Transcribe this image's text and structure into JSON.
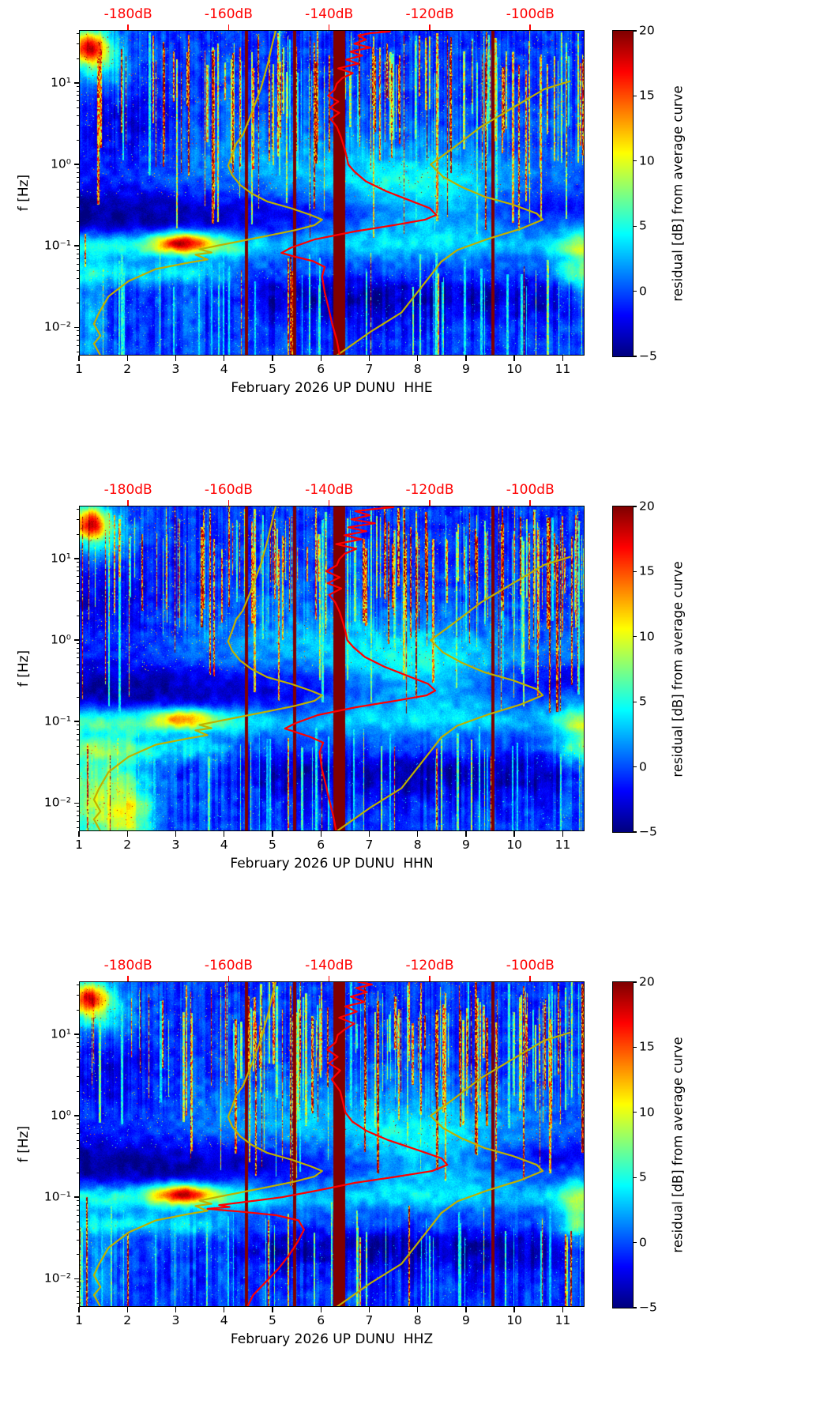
{
  "chart_data": {
    "type": "heatmap",
    "panels": [
      {
        "xlabel": "February 2026 UP DUNU  HHE"
      },
      {
        "xlabel": "February 2026 UP DUNU  HHN"
      },
      {
        "xlabel": "February 2026 UP DUNU  HHZ"
      }
    ],
    "x_axis": {
      "ticks": [
        1,
        2,
        3,
        4,
        5,
        6,
        7,
        8,
        9,
        10,
        11
      ],
      "range_days": [
        1,
        11.45
      ]
    },
    "y_axis": {
      "label": "f [Hz]",
      "scale": "log",
      "range_hz": [
        0.0045,
        44.7
      ],
      "ticks_hz": [
        0.01,
        0.1,
        1,
        10
      ],
      "tick_labels": [
        "10⁻²",
        "10⁻¹",
        "10⁰",
        "10¹"
      ]
    },
    "top_axis": {
      "labels": [
        "-180dB",
        "-160dB",
        "-140dB",
        "-120dB",
        "-100dB"
      ],
      "db_values": [
        -180,
        -160,
        -140,
        -120,
        -100
      ],
      "db_to_day": {
        "m": 0.10389,
        "b": 20.716
      },
      "color": "#ff0000"
    },
    "colorbar": {
      "label": "residual [dB] from average curve",
      "tick_labels": [
        "20",
        "15",
        "10",
        "5",
        "0",
        "−5"
      ],
      "tick_values": [
        20,
        15,
        10,
        5,
        0,
        -5
      ],
      "range": [
        -5,
        20
      ],
      "colormap": "jet"
    },
    "curves": {
      "average_color": "#ff0000",
      "model_color": "#bfb100",
      "noise_model_low_db_hz": [
        [
          -185.5,
          0.0045
        ],
        [
          -186.8,
          0.0063
        ],
        [
          -185.5,
          0.0079
        ],
        [
          -186.8,
          0.011
        ],
        [
          -185.8,
          0.015
        ],
        [
          -183.9,
          0.024
        ],
        [
          -179.9,
          0.037
        ],
        [
          -174.5,
          0.052
        ],
        [
          -168.1,
          0.062
        ],
        [
          -164.2,
          0.068
        ],
        [
          -166.6,
          0.078
        ],
        [
          -163.4,
          0.083
        ],
        [
          -165.8,
          0.091
        ],
        [
          -158.7,
          0.111
        ],
        [
          -152.3,
          0.133
        ],
        [
          -146.8,
          0.156
        ],
        [
          -142.9,
          0.18
        ],
        [
          -141.4,
          0.21
        ],
        [
          -143.7,
          0.24
        ],
        [
          -147.6,
          0.29
        ],
        [
          -152.3,
          0.35
        ],
        [
          -155.4,
          0.44
        ],
        [
          -157.7,
          0.56
        ],
        [
          -159.3,
          0.74
        ],
        [
          -160.1,
          0.97
        ],
        [
          -159.3,
          1.3
        ],
        [
          -158.5,
          1.8
        ],
        [
          -157.2,
          2.3
        ],
        [
          -155.9,
          3.6
        ],
        [
          -154.7,
          5.6
        ],
        [
          -153.5,
          8.9
        ],
        [
          -152.2,
          17.3
        ],
        [
          -151.1,
          34.1
        ],
        [
          -150.6,
          44.7
        ]
      ],
      "noise_model_high_db_hz": [
        [
          -138.5,
          0.0045
        ],
        [
          -131.8,
          0.0088
        ],
        [
          -125.6,
          0.0152
        ],
        [
          -119.5,
          0.046
        ],
        [
          -117.7,
          0.064
        ],
        [
          -114.5,
          0.089
        ],
        [
          -108.2,
          0.123
        ],
        [
          -101.9,
          0.162
        ],
        [
          -97.5,
          0.21
        ],
        [
          -98.7,
          0.25
        ],
        [
          -103.4,
          0.32
        ],
        [
          -109.0,
          0.4
        ],
        [
          -113.7,
          0.53
        ],
        [
          -117.4,
          0.71
        ],
        [
          -119.8,
          1.0
        ],
        [
          -115.3,
          1.6
        ],
        [
          -109.8,
          2.9
        ],
        [
          -103.4,
          5.0
        ],
        [
          -97.2,
          8.4
        ],
        [
          -92.1,
          10.5
        ]
      ],
      "average_db_hz_per_panel": [
        [
          [
            -137.9,
            0.0045
          ],
          [
            -138.5,
            0.007
          ],
          [
            -139.4,
            0.011
          ],
          [
            -140.1,
            0.017
          ],
          [
            -140.9,
            0.027
          ],
          [
            -141.4,
            0.042
          ],
          [
            -140.9,
            0.055
          ],
          [
            -143.2,
            0.065
          ],
          [
            -147.3,
            0.075
          ],
          [
            -149.5,
            0.082
          ],
          [
            -147.6,
            0.095
          ],
          [
            -142.9,
            0.12
          ],
          [
            -135.0,
            0.15
          ],
          [
            -127.1,
            0.18
          ],
          [
            -120.9,
            0.21
          ],
          [
            -118.7,
            0.24
          ],
          [
            -120.0,
            0.29
          ],
          [
            -123.9,
            0.36
          ],
          [
            -128.7,
            0.47
          ],
          [
            -132.7,
            0.62
          ],
          [
            -135.0,
            0.82
          ],
          [
            -136.2,
            1.0
          ],
          [
            -136.6,
            1.3
          ],
          [
            -137.0,
            1.6
          ],
          [
            -137.7,
            2.2
          ],
          [
            -138.5,
            2.9
          ],
          [
            -139.7,
            3.6
          ],
          [
            -138.0,
            4.3
          ],
          [
            -139.9,
            5.0
          ],
          [
            -138.2,
            5.9
          ],
          [
            -140.2,
            7.0
          ],
          [
            -138.9,
            8.3
          ],
          [
            -138.5,
            9.8
          ],
          [
            -137.4,
            11.5
          ],
          [
            -135.3,
            13.2
          ],
          [
            -138.2,
            15.1
          ],
          [
            -134.2,
            17.3
          ],
          [
            -136.6,
            19.4
          ],
          [
            -133.4,
            21.7
          ],
          [
            -135.8,
            24.3
          ],
          [
            -131.8,
            27.2
          ],
          [
            -135.0,
            30.4
          ],
          [
            -132.7,
            34.1
          ],
          [
            -134.2,
            38.2
          ],
          [
            -131.8,
            40.9
          ],
          [
            -127.9,
            42.8
          ],
          [
            -130.3,
            44.7
          ]
        ],
        [
          [
            -138.6,
            0.0045
          ],
          [
            -139.2,
            0.007
          ],
          [
            -140.0,
            0.011
          ],
          [
            -140.7,
            0.017
          ],
          [
            -141.5,
            0.027
          ],
          [
            -141.9,
            0.042
          ],
          [
            -141.2,
            0.055
          ],
          [
            -143.8,
            0.065
          ],
          [
            -146.9,
            0.075
          ],
          [
            -148.8,
            0.082
          ],
          [
            -146.8,
            0.095
          ],
          [
            -142.3,
            0.12
          ],
          [
            -134.6,
            0.15
          ],
          [
            -126.8,
            0.18
          ],
          [
            -120.6,
            0.21
          ],
          [
            -118.9,
            0.24
          ],
          [
            -120.3,
            0.29
          ],
          [
            -124.2,
            0.36
          ],
          [
            -129.0,
            0.47
          ],
          [
            -132.9,
            0.62
          ],
          [
            -135.2,
            0.82
          ],
          [
            -136.4,
            1.0
          ],
          [
            -136.8,
            1.3
          ],
          [
            -137.2,
            1.6
          ],
          [
            -137.9,
            2.2
          ],
          [
            -138.8,
            2.9
          ],
          [
            -140.0,
            3.6
          ],
          [
            -137.6,
            4.3
          ],
          [
            -140.3,
            5.0
          ],
          [
            -137.9,
            5.9
          ],
          [
            -140.6,
            7.0
          ],
          [
            -138.5,
            8.3
          ],
          [
            -138.0,
            9.8
          ],
          [
            -136.9,
            11.5
          ],
          [
            -134.6,
            13.2
          ],
          [
            -138.6,
            15.1
          ],
          [
            -133.6,
            17.3
          ],
          [
            -137.0,
            19.4
          ],
          [
            -132.6,
            21.7
          ],
          [
            -136.2,
            24.3
          ],
          [
            -130.9,
            27.2
          ],
          [
            -135.6,
            30.4
          ],
          [
            -131.9,
            34.1
          ],
          [
            -134.8,
            38.2
          ],
          [
            -130.7,
            40.9
          ],
          [
            -127.2,
            42.8
          ],
          [
            -129.8,
            44.7
          ]
        ],
        [
          [
            -156.3,
            0.0045
          ],
          [
            -155.1,
            0.0063
          ],
          [
            -152.7,
            0.009
          ],
          [
            -150.2,
            0.013
          ],
          [
            -148.1,
            0.019
          ],
          [
            -146.3,
            0.028
          ],
          [
            -145.0,
            0.04
          ],
          [
            -146.1,
            0.052
          ],
          [
            -150.5,
            0.06
          ],
          [
            -157.0,
            0.066
          ],
          [
            -164.2,
            0.072
          ],
          [
            -159.8,
            0.076
          ],
          [
            -161.9,
            0.08
          ],
          [
            -155.1,
            0.09
          ],
          [
            -149.4,
            0.1
          ],
          [
            -142.6,
            0.12
          ],
          [
            -134.9,
            0.15
          ],
          [
            -126.3,
            0.18
          ],
          [
            -119.5,
            0.21
          ],
          [
            -116.5,
            0.25
          ],
          [
            -117.6,
            0.3
          ],
          [
            -122.4,
            0.38
          ],
          [
            -128.2,
            0.5
          ],
          [
            -132.5,
            0.65
          ],
          [
            -135.4,
            0.85
          ],
          [
            -136.8,
            1.1
          ],
          [
            -137.3,
            1.5
          ],
          [
            -137.8,
            2.0
          ],
          [
            -139.5,
            2.8
          ],
          [
            -137.8,
            3.6
          ],
          [
            -140.0,
            4.4
          ],
          [
            -138.3,
            5.3
          ],
          [
            -140.4,
            6.5
          ],
          [
            -138.7,
            8.0
          ],
          [
            -138.3,
            9.8
          ],
          [
            -136.9,
            11.5
          ],
          [
            -135.0,
            13.5
          ],
          [
            -138.0,
            16
          ],
          [
            -134.5,
            19
          ],
          [
            -136.8,
            22
          ],
          [
            -133.0,
            25
          ],
          [
            -135.7,
            29
          ],
          [
            -132.5,
            33
          ],
          [
            -134.6,
            37
          ],
          [
            -131.5,
            41
          ],
          [
            -134.5,
            44.7
          ]
        ]
      ]
    },
    "spectrogram": {
      "value_range": [
        -5,
        20
      ],
      "saturated_columns_days": [
        {
          "day": 4.45,
          "width": 0.05
        },
        {
          "day": 5.45,
          "width": 0.05
        },
        {
          "day": 6.37,
          "width": 0.22
        },
        {
          "day": 9.55,
          "width": 0.05
        }
      ],
      "seeds": [
        11,
        22,
        33
      ],
      "hotspot": {
        "day": 3.15,
        "freq_hz": 0.11,
        "amp_per_panel": [
          13.5,
          9,
          13.5
        ]
      },
      "extra_stripes": [
        [
          {
            "day": 5.32,
            "lf1": -1.15,
            "lf0": -2.35,
            "amp": 14,
            "wpx": 2
          },
          {
            "day": 7.9,
            "lf1": -1.5,
            "lf0": -2.35,
            "amp": 7,
            "wpx": 2
          },
          {
            "day": 1.12,
            "lf1": -0.85,
            "lf0": -1.25,
            "amp": 15,
            "wpx": 2
          }
        ],
        [
          {
            "day": 5.32,
            "lf1": -1.2,
            "lf0": -2.35,
            "amp": 12,
            "wpx": 2
          }
        ],
        [
          {
            "day": 1.16,
            "lf1": -1.0,
            "lf0": -2.35,
            "amp": 17,
            "wpx": 2
          },
          {
            "day": 5.32,
            "lf1": -1.2,
            "lf0": -2.35,
            "amp": 10,
            "wpx": 2
          }
        ]
      ]
    }
  }
}
